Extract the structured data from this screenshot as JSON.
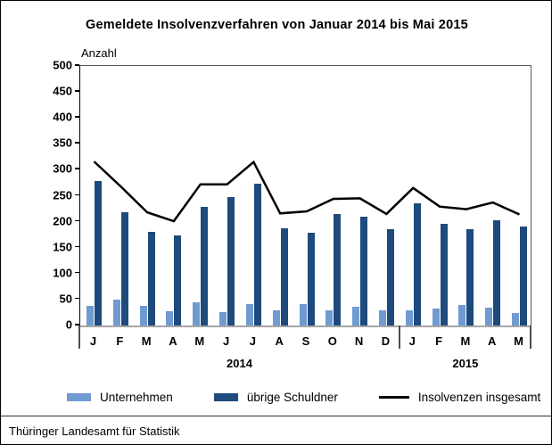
{
  "title": "Gemeldete Insolvenzverfahren von Januar 2014 bis Mai 2015",
  "y_axis_title": "Anzahl",
  "footer": "Thüringer Landesamt für Statistik",
  "colors": {
    "bar_light": "#6f9bd1",
    "bar_dark": "#1f4a7c",
    "line": "#000000"
  },
  "legend": [
    {
      "label": "Unternehmen",
      "type": "bar",
      "color": "#6f9bd1"
    },
    {
      "label": "übrige Schuldner",
      "type": "bar",
      "color": "#1f4a7c"
    },
    {
      "label": "Insolvenzen insgesamt",
      "type": "line",
      "color": "#000000"
    }
  ],
  "chart_data": {
    "type": "bar",
    "title": "Gemeldete Insolvenzverfahren von Januar 2014 bis Mai 2015",
    "categories": [
      "J",
      "F",
      "M",
      "A",
      "M",
      "J",
      "J",
      "A",
      "S",
      "O",
      "N",
      "D",
      "J",
      "F",
      "M",
      "A",
      "M"
    ],
    "year_groups": [
      {
        "label": "2014",
        "start": 0,
        "count": 12
      },
      {
        "label": "2015",
        "start": 12,
        "count": 5
      }
    ],
    "series": [
      {
        "name": "Unternehmen",
        "render": "bar",
        "color": "#6f9bd1",
        "values": [
          38,
          50,
          38,
          28,
          44,
          25,
          41,
          29,
          42,
          29,
          36,
          30,
          30,
          33,
          39,
          34,
          24
        ]
      },
      {
        "name": "übrige Schuldner",
        "render": "bar",
        "color": "#1f4a7c",
        "values": [
          278,
          218,
          180,
          173,
          228,
          247,
          274,
          187,
          178,
          215,
          209,
          185,
          235,
          196,
          185,
          203,
          190
        ]
      },
      {
        "name": "Insolvenzen insgesamt",
        "render": "line",
        "color": "#000000",
        "values": [
          316,
          268,
          218,
          201,
          272,
          272,
          315,
          216,
          220,
          244,
          245,
          215,
          265,
          229,
          224,
          237,
          214
        ]
      }
    ],
    "xlabel": "",
    "ylabel": "Anzahl",
    "ylim": [
      0,
      500
    ],
    "ytick_step": 50,
    "grid": false,
    "legend_position": "bottom"
  }
}
